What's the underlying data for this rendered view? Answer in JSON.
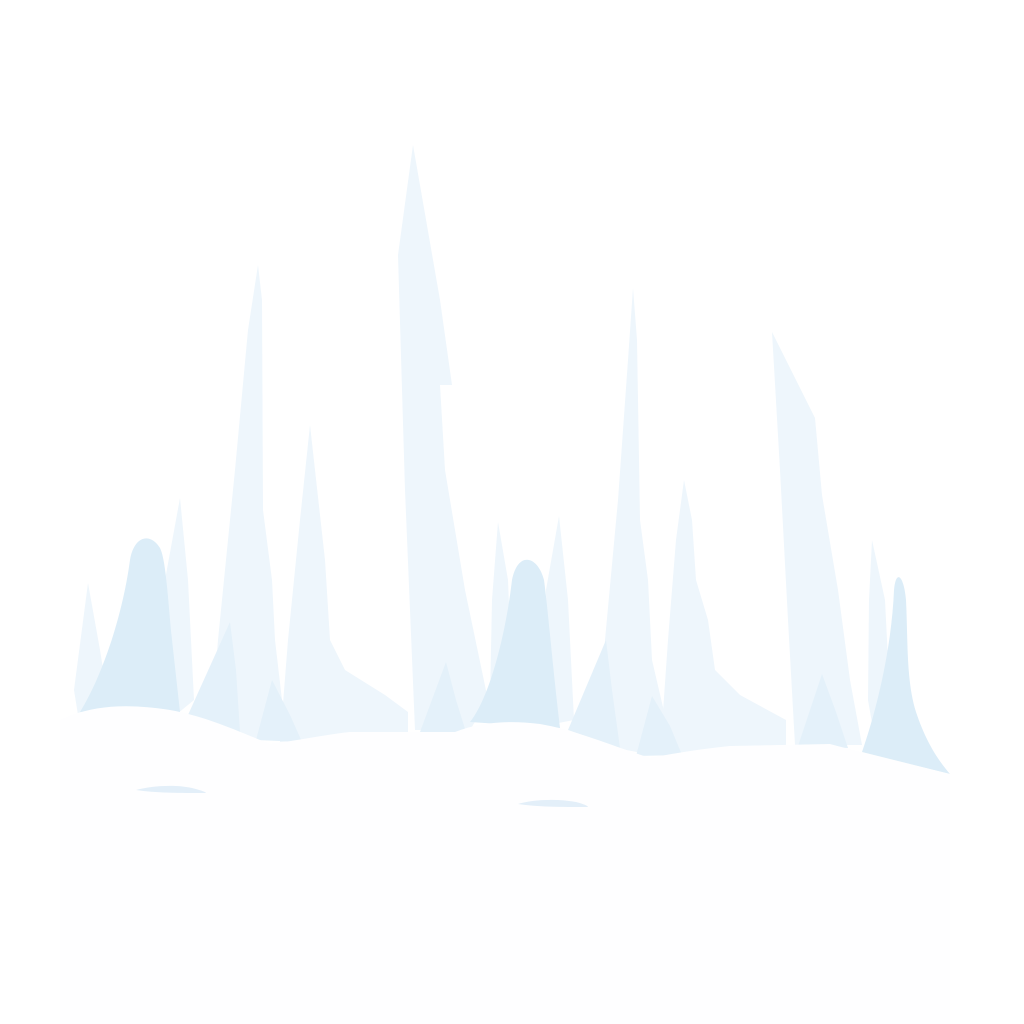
{
  "scene": {
    "subject": "ice-spires-on-snow-mound",
    "colors": {
      "background": "#ffffff",
      "snow": "#fefeff",
      "ice_pale": "#eef6fc",
      "ice_light": "#e4f1fa",
      "ice_mid": "#dcedf8",
      "snow_shadow": "#e3eff9"
    }
  }
}
